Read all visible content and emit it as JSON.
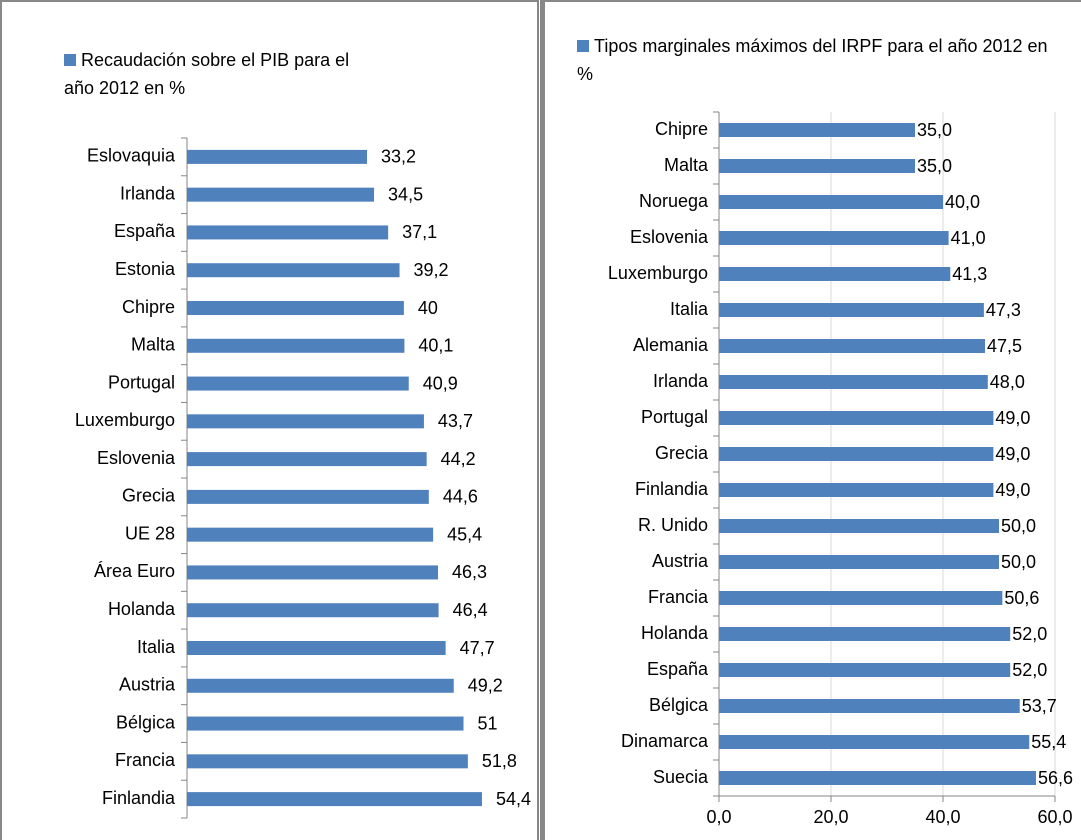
{
  "chart_data": [
    {
      "type": "bar",
      "orientation": "horizontal",
      "categories": [
        "Eslovaquia",
        "Irlanda",
        "España",
        "Estonia",
        "Chipre",
        "Malta",
        "Portugal",
        "Luxemburgo",
        "Eslovenia",
        "Grecia",
        "UE 28",
        "Área Euro",
        "Holanda",
        "Italia",
        "Austria",
        "Bélgica",
        "Francia",
        "Finlandia"
      ],
      "series": [
        {
          "name": "Recaudación sobre el PIB para el año 2012 en %",
          "color": "#4f81bd",
          "values": [
            33.2,
            34.5,
            37.1,
            39.2,
            40,
            40.1,
            40.9,
            43.7,
            44.2,
            44.6,
            45.4,
            46.3,
            46.4,
            47.7,
            49.2,
            51,
            51.8,
            54.4
          ],
          "value_labels": [
            "33,2",
            "34,5",
            "37,1",
            "39,2",
            "40",
            "40,1",
            "40,9",
            "43,7",
            "44,2",
            "44,6",
            "45,4",
            "46,3",
            "46,4",
            "47,7",
            "49,2",
            "51",
            "51,8",
            "54,4"
          ]
        }
      ],
      "xlim": [
        0,
        64
      ]
    },
    {
      "type": "bar",
      "orientation": "horizontal",
      "categories": [
        "Chipre",
        "Malta",
        "Noruega",
        "Eslovenia",
        "Luxemburgo",
        "Italia",
        "Alemania",
        "Irlanda",
        "Portugal",
        "Grecia",
        "Finlandia",
        "R. Unido",
        "Austria",
        "Francia",
        "Holanda",
        "España",
        "Bélgica",
        "Dinamarca",
        "Suecia"
      ],
      "series": [
        {
          "name": "Tipos marginales máximos del IRPF para el año 2012 en %",
          "color": "#4f81bd",
          "values": [
            35.0,
            35.0,
            40.0,
            41.0,
            41.3,
            47.3,
            47.5,
            48.0,
            49.0,
            49.0,
            49.0,
            50.0,
            50.0,
            50.6,
            52.0,
            52.0,
            53.7,
            55.4,
            56.6
          ],
          "value_labels": [
            "35,0",
            "35,0",
            "40,0",
            "41,0",
            "41,3",
            "47,3",
            "47,5",
            "48,0",
            "49,0",
            "49,0",
            "49,0",
            "50,0",
            "50,0",
            "50,6",
            "52,0",
            "52,0",
            "53,7",
            "55,4",
            "56,6"
          ]
        }
      ],
      "xlim": [
        0,
        60
      ],
      "xticks": [
        {
          "value": 0,
          "label": "0,0"
        },
        {
          "value": 20,
          "label": "20,0"
        },
        {
          "value": 40,
          "label": "40,0"
        },
        {
          "value": 60,
          "label": "60,0"
        }
      ],
      "grid": true
    }
  ]
}
